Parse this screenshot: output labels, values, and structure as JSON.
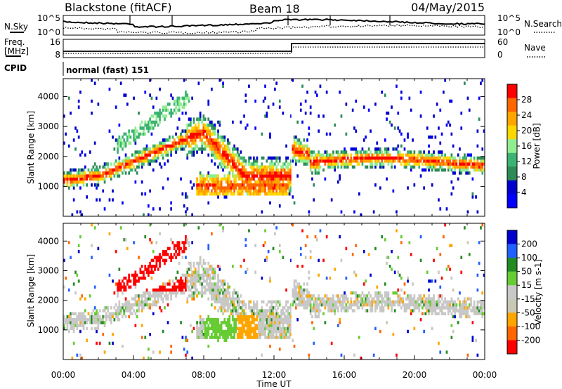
{
  "header": {
    "title": "Blackstone (fitACF)",
    "beam": "Beam 18",
    "date": "04/May/2015"
  },
  "noise_panel": {
    "left_label": "N.Sky",
    "right_label": "N.Search",
    "y_ticks": [
      "10^5",
      "10^0"
    ]
  },
  "freq_panel": {
    "left_label_line1": "Freq.",
    "left_label_line2": "[MHz]",
    "left_ticks": [
      "16",
      "8"
    ],
    "right_label": "Nave",
    "right_ticks": [
      "60",
      "0"
    ],
    "freq_step_time_hours": 13.0
  },
  "cpid": {
    "label": "CPID",
    "value": "normal (fast) 151"
  },
  "colors": {
    "power": [
      "#0000ff",
      "#0000cc",
      "#2e8b57",
      "#3cb371",
      "#90ee90",
      "#ffd700",
      "#ffa500",
      "#ff6600",
      "#ff0000"
    ],
    "velocity": [
      "#0000cc",
      "#2060ff",
      "#228b22",
      "#66cc33",
      "#c8c8c8",
      "#c8c8b4",
      "#ffa500",
      "#ff6600",
      "#ff0000"
    ]
  },
  "chart_data": [
    {
      "type": "heatmap",
      "ylabel": "Slant Range [km]",
      "ylim": [
        0,
        4600
      ],
      "y_ticks": [
        "1000",
        "2000",
        "3000",
        "4000"
      ],
      "xlim": [
        0,
        24
      ],
      "colorbar_label": "Power [dB]",
      "colorbar_ticks": [
        "28",
        "24",
        "20",
        "16",
        "12",
        "8",
        "4"
      ],
      "clim": [
        0,
        32
      ]
    },
    {
      "type": "heatmap",
      "ylabel": "Slant Range [km]",
      "ylim": [
        0,
        4600
      ],
      "y_ticks": [
        "1000",
        "2000",
        "3000",
        "4000"
      ],
      "xlabel": "Time UT",
      "x_ticks": [
        "00:00",
        "04:00",
        "08:00",
        "12:00",
        "16:00",
        "20:00",
        "00:00"
      ],
      "xlim": [
        0,
        24
      ],
      "colorbar_label": "Velocity [m s-1]",
      "colorbar_ticks": [
        "200",
        "100",
        "50",
        "15",
        "-15",
        "-50",
        "-100",
        "-200"
      ]
    }
  ]
}
